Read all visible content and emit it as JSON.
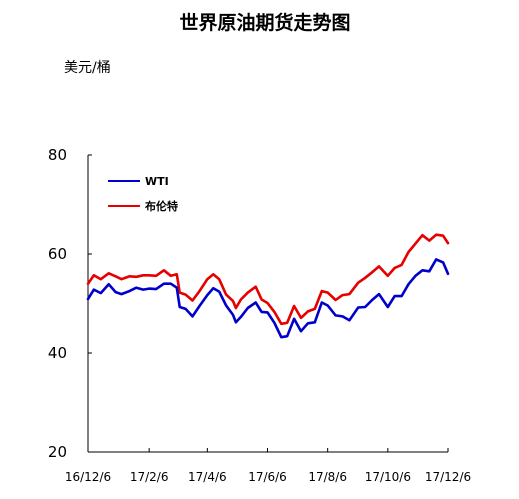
{
  "chart_data": {
    "type": "line",
    "title": "世界原油期货走势图",
    "ylabel": "美元/桶",
    "xlabel": "",
    "ylim": [
      20,
      80
    ],
    "yticks": [
      "20",
      "40",
      "60",
      "80"
    ],
    "x_start": "2016-12-06",
    "x_end": "2017-12-06",
    "xticks": [
      {
        "date": "2016-12-06",
        "label": "16/12/6"
      },
      {
        "date": "2017-02-06",
        "label": "17/2/6"
      },
      {
        "date": "2017-04-06",
        "label": "17/4/6"
      },
      {
        "date": "2017-06-06",
        "label": "17/6/6"
      },
      {
        "date": "2017-08-06",
        "label": "17/8/6"
      },
      {
        "date": "2017-10-06",
        "label": "17/10/6"
      },
      {
        "date": "2017-12-06",
        "label": "17/12/6"
      }
    ],
    "legend_position": "top-left",
    "grid": false,
    "series": [
      {
        "name": "WTI",
        "color": "#0000cc",
        "points": [
          [
            "2016-12-06",
            50.9
          ],
          [
            "2016-12-12",
            52.8
          ],
          [
            "2016-12-19",
            52.1
          ],
          [
            "2016-12-27",
            53.9
          ],
          [
            "2017-01-03",
            52.3
          ],
          [
            "2017-01-09",
            51.9
          ],
          [
            "2017-01-17",
            52.5
          ],
          [
            "2017-01-24",
            53.2
          ],
          [
            "2017-01-31",
            52.8
          ],
          [
            "2017-02-06",
            53.0
          ],
          [
            "2017-02-13",
            52.9
          ],
          [
            "2017-02-21",
            54.0
          ],
          [
            "2017-02-28",
            54.0
          ],
          [
            "2017-03-06",
            53.2
          ],
          [
            "2017-03-09",
            49.3
          ],
          [
            "2017-03-15",
            48.9
          ],
          [
            "2017-03-22",
            47.4
          ],
          [
            "2017-03-29",
            49.5
          ],
          [
            "2017-04-06",
            51.7
          ],
          [
            "2017-04-12",
            53.1
          ],
          [
            "2017-04-18",
            52.4
          ],
          [
            "2017-04-25",
            49.6
          ],
          [
            "2017-05-02",
            47.7
          ],
          [
            "2017-05-05",
            46.2
          ],
          [
            "2017-05-10",
            47.3
          ],
          [
            "2017-05-17",
            49.1
          ],
          [
            "2017-05-25",
            50.2
          ],
          [
            "2017-05-31",
            48.3
          ],
          [
            "2017-06-06",
            48.2
          ],
          [
            "2017-06-13",
            46.1
          ],
          [
            "2017-06-20",
            43.2
          ],
          [
            "2017-06-26",
            43.4
          ],
          [
            "2017-07-03",
            46.9
          ],
          [
            "2017-07-10",
            44.4
          ],
          [
            "2017-07-17",
            46.0
          ],
          [
            "2017-07-24",
            46.2
          ],
          [
            "2017-07-31",
            50.2
          ],
          [
            "2017-08-06",
            49.6
          ],
          [
            "2017-08-14",
            47.6
          ],
          [
            "2017-08-21",
            47.4
          ],
          [
            "2017-08-28",
            46.6
          ],
          [
            "2017-09-06",
            49.2
          ],
          [
            "2017-09-13",
            49.3
          ],
          [
            "2017-09-20",
            50.7
          ],
          [
            "2017-09-27",
            51.9
          ],
          [
            "2017-10-06",
            49.3
          ],
          [
            "2017-10-13",
            51.5
          ],
          [
            "2017-10-20",
            51.5
          ],
          [
            "2017-10-27",
            53.9
          ],
          [
            "2017-11-03",
            55.6
          ],
          [
            "2017-11-10",
            56.7
          ],
          [
            "2017-11-17",
            56.5
          ],
          [
            "2017-11-24",
            58.9
          ],
          [
            "2017-12-01",
            58.3
          ],
          [
            "2017-12-06",
            56.0
          ]
        ]
      },
      {
        "name": "布伦特",
        "color": "#e60000",
        "points": [
          [
            "2016-12-06",
            54.0
          ],
          [
            "2016-12-12",
            55.7
          ],
          [
            "2016-12-19",
            54.9
          ],
          [
            "2016-12-27",
            56.1
          ],
          [
            "2017-01-03",
            55.5
          ],
          [
            "2017-01-09",
            54.9
          ],
          [
            "2017-01-17",
            55.5
          ],
          [
            "2017-01-24",
            55.4
          ],
          [
            "2017-01-31",
            55.7
          ],
          [
            "2017-02-06",
            55.7
          ],
          [
            "2017-02-13",
            55.6
          ],
          [
            "2017-02-21",
            56.7
          ],
          [
            "2017-02-28",
            55.6
          ],
          [
            "2017-03-06",
            55.9
          ],
          [
            "2017-03-09",
            52.2
          ],
          [
            "2017-03-15",
            51.8
          ],
          [
            "2017-03-22",
            50.6
          ],
          [
            "2017-03-29",
            52.5
          ],
          [
            "2017-04-06",
            54.9
          ],
          [
            "2017-04-12",
            55.9
          ],
          [
            "2017-04-18",
            54.9
          ],
          [
            "2017-04-25",
            51.8
          ],
          [
            "2017-05-02",
            50.5
          ],
          [
            "2017-05-05",
            49.1
          ],
          [
            "2017-05-10",
            50.8
          ],
          [
            "2017-05-17",
            52.2
          ],
          [
            "2017-05-25",
            53.4
          ],
          [
            "2017-05-31",
            50.8
          ],
          [
            "2017-06-06",
            50.1
          ],
          [
            "2017-06-13",
            48.3
          ],
          [
            "2017-06-20",
            45.9
          ],
          [
            "2017-06-26",
            46.1
          ],
          [
            "2017-07-03",
            49.5
          ],
          [
            "2017-07-10",
            47.1
          ],
          [
            "2017-07-17",
            48.4
          ],
          [
            "2017-07-24",
            48.9
          ],
          [
            "2017-07-31",
            52.5
          ],
          [
            "2017-08-06",
            52.2
          ],
          [
            "2017-08-14",
            50.7
          ],
          [
            "2017-08-21",
            51.7
          ],
          [
            "2017-08-28",
            51.9
          ],
          [
            "2017-09-06",
            54.2
          ],
          [
            "2017-09-13",
            55.2
          ],
          [
            "2017-09-20",
            56.3
          ],
          [
            "2017-09-27",
            57.5
          ],
          [
            "2017-10-06",
            55.6
          ],
          [
            "2017-10-13",
            57.2
          ],
          [
            "2017-10-20",
            57.8
          ],
          [
            "2017-10-27",
            60.4
          ],
          [
            "2017-11-03",
            62.1
          ],
          [
            "2017-11-10",
            63.8
          ],
          [
            "2017-11-17",
            62.7
          ],
          [
            "2017-11-24",
            63.9
          ],
          [
            "2017-12-01",
            63.7
          ],
          [
            "2017-12-06",
            62.2
          ]
        ]
      }
    ]
  }
}
